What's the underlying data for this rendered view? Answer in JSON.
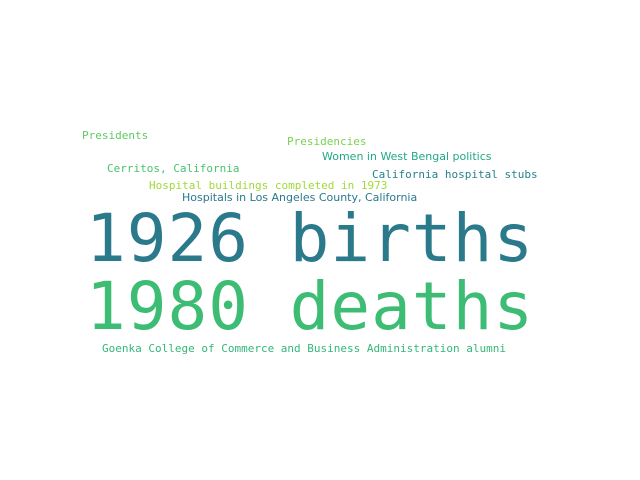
{
  "word_cloud": {
    "words": {
      "births_1926": {
        "text": "1926 births",
        "color": "#2a7a8c"
      },
      "deaths_1980": {
        "text": "1980 deaths",
        "color": "#3dbc74"
      },
      "presidents": {
        "text": "Presidents",
        "color": "#5ec962"
      },
      "presidencies": {
        "text": "Presidencies",
        "color": "#7ad151"
      },
      "women_west_bengal": {
        "text": "Women in West Bengal politics",
        "color": "#22a884"
      },
      "cerritos": {
        "text": "Cerritos, California",
        "color": "#4ac16d"
      },
      "california_hospital_stubs": {
        "text": "California hospital stubs",
        "color": "#26828e"
      },
      "hospital_buildings_1973": {
        "text": "Hospital buildings completed in 1973",
        "color": "#a0da39"
      },
      "hospitals_la_county": {
        "text": "Hospitals in Los Angeles County, California",
        "color": "#2a788e"
      },
      "goenka_alumni": {
        "text": "Goenka College of Commerce and Business Administration alumni",
        "color": "#35b779"
      }
    }
  }
}
